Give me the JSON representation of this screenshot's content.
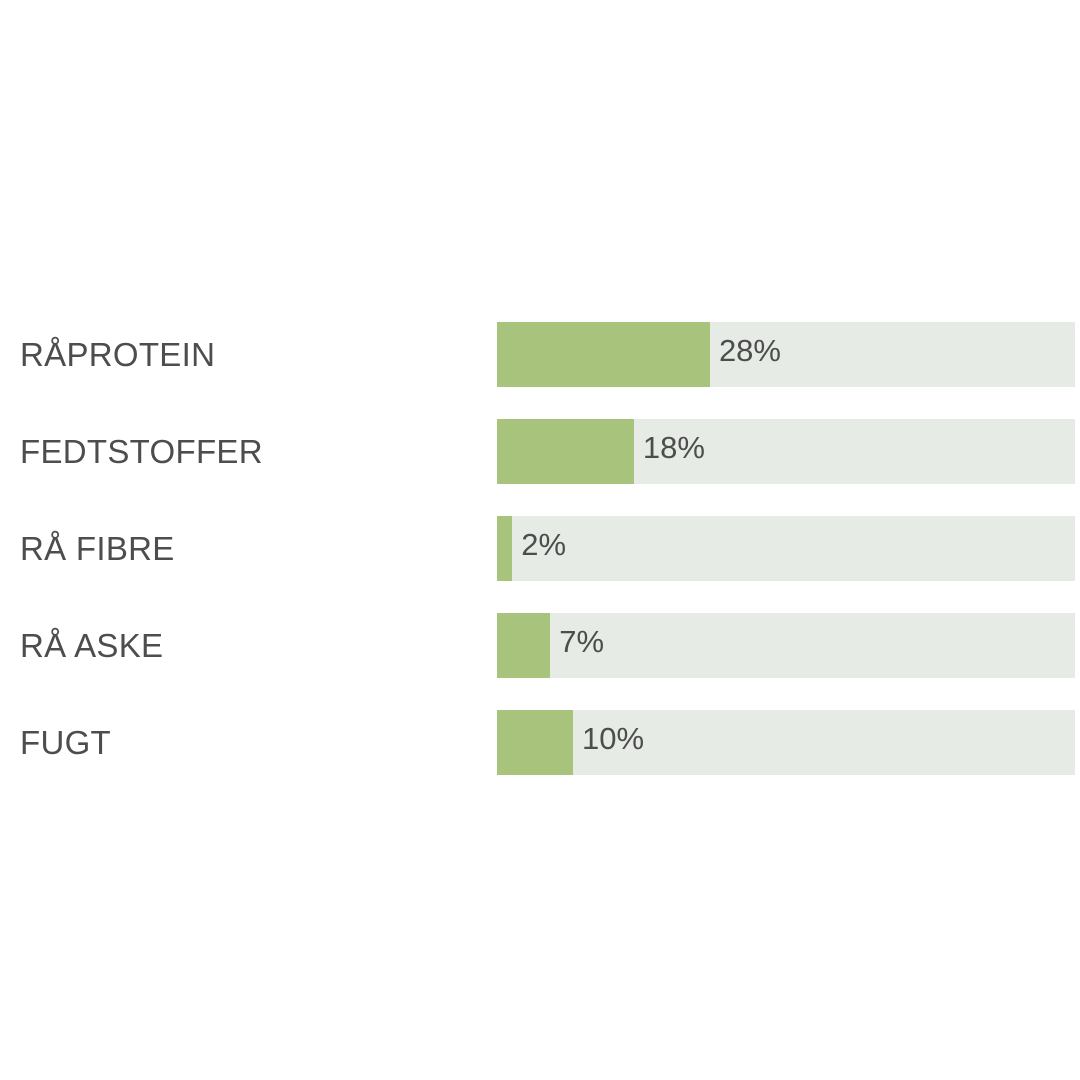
{
  "chart_data": {
    "type": "bar",
    "orientation": "horizontal",
    "categories": [
      "RÅPROTEIN",
      "FEDTSTOFFER",
      "RÅ FIBRE",
      "RÅ ASKE",
      "FUGT"
    ],
    "values": [
      28,
      18,
      2,
      7,
      10
    ],
    "value_labels": [
      "28%",
      "18%",
      "2%",
      "7%",
      "10%"
    ],
    "xlim": [
      0,
      76
    ],
    "unit": "%",
    "title": "",
    "xlabel": "",
    "ylabel": "",
    "grid": false,
    "legend": "none",
    "colors": {
      "bar": "#a8c47c",
      "track": "#e6ebe6",
      "text": "#4d4d4d"
    }
  }
}
